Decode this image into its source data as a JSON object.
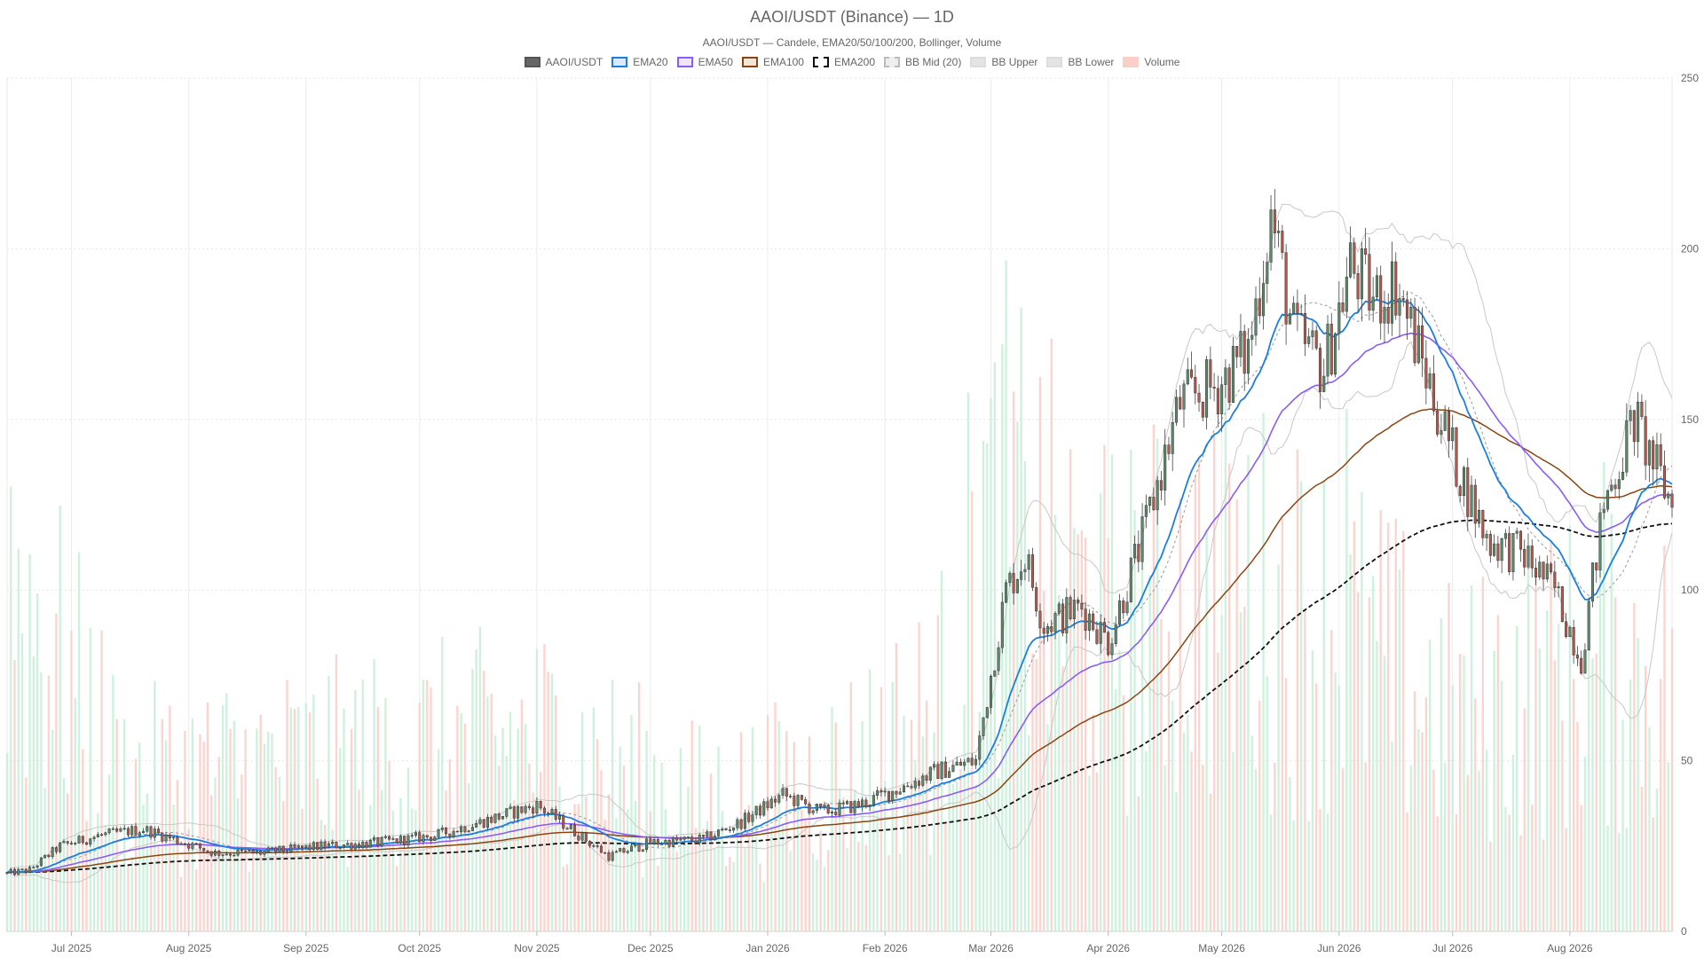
{
  "chart_data": {
    "type": "candlestick",
    "title": "AAOI/USDT (Binance) — 1D",
    "subtitle": "AAOI/USDT — Candele, EMA20/50/100/200, Bollinger, Volume",
    "legend": [
      {
        "label": "AAOI/USDT",
        "style": "solid",
        "fill": "#666666",
        "stroke": "#555555"
      },
      {
        "label": "EMA20",
        "style": "solid",
        "fill": "#dbeafd",
        "stroke": "#1a7fe0"
      },
      {
        "label": "EMA50",
        "style": "solid",
        "fill": "#ede6fd",
        "stroke": "#8b5cf6"
      },
      {
        "label": "EMA100",
        "style": "solid",
        "fill": "#f3e6d8",
        "stroke": "#8b4513"
      },
      {
        "label": "EMA200",
        "style": "dashed",
        "fill": "#ffffff",
        "stroke": "#111111"
      },
      {
        "label": "BB Mid (20)",
        "style": "dashed",
        "fill": "#eeeeee",
        "stroke": "#bbbbbb"
      },
      {
        "label": "BB Upper",
        "style": "solid",
        "fill": "#e4e4e4",
        "stroke": "#dddddd"
      },
      {
        "label": "BB Lower",
        "style": "solid",
        "fill": "#e4e4e4",
        "stroke": "#dddddd"
      },
      {
        "label": "Volume",
        "style": "solid",
        "fill": "#fbcfc9",
        "stroke": "#fbcfc9"
      }
    ],
    "legend_position": "top-center",
    "y_axis": {
      "side": "right",
      "min": 0,
      "max": 250,
      "ticks": [
        0,
        50,
        100,
        150,
        200,
        250
      ]
    },
    "x_axis": {
      "start": "2025-06-14",
      "end": "2026-08-28",
      "ticks": [
        {
          "label": "Jul 2025",
          "date": "2025-07-01"
        },
        {
          "label": "Aug 2025",
          "date": "2025-08-01"
        },
        {
          "label": "Sep 2025",
          "date": "2025-09-01"
        },
        {
          "label": "Oct 2025",
          "date": "2025-10-01"
        },
        {
          "label": "Nov 2025",
          "date": "2025-11-01"
        },
        {
          "label": "Dec 2025",
          "date": "2025-12-01"
        },
        {
          "label": "Jan 2026",
          "date": "2026-01-01"
        },
        {
          "label": "Feb 2026",
          "date": "2026-02-01"
        },
        {
          "label": "Mar 2026",
          "date": "2026-03-01"
        },
        {
          "label": "Apr 2026",
          "date": "2026-04-01"
        },
        {
          "label": "May 2026",
          "date": "2026-05-01"
        },
        {
          "label": "Jun 2026",
          "date": "2026-06-01"
        },
        {
          "label": "Jul 2026",
          "date": "2026-07-01"
        },
        {
          "label": "Aug 2026",
          "date": "2026-08-01"
        }
      ]
    },
    "grid": true,
    "colors": {
      "up": "#5b8a6b",
      "down": "#b5584a",
      "volume_up": "#c9efd9",
      "volume_down": "#fbcfc9"
    },
    "volume_axis_max": 40000000,
    "price_anchors": [
      [
        "2025-06-14",
        17
      ],
      [
        "2025-06-20",
        18
      ],
      [
        "2025-06-28",
        25
      ],
      [
        "2025-07-08",
        28
      ],
      [
        "2025-07-20",
        30
      ],
      [
        "2025-07-28",
        27
      ],
      [
        "2025-08-08",
        23
      ],
      [
        "2025-08-20",
        23
      ],
      [
        "2025-09-05",
        25
      ],
      [
        "2025-09-20",
        26
      ],
      [
        "2025-10-05",
        28
      ],
      [
        "2025-10-20",
        33
      ],
      [
        "2025-11-01",
        37
      ],
      [
        "2025-11-10",
        30
      ],
      [
        "2025-11-20",
        22
      ],
      [
        "2025-12-01",
        26
      ],
      [
        "2025-12-15",
        27
      ],
      [
        "2025-12-25",
        32
      ],
      [
        "2026-01-05",
        40
      ],
      [
        "2026-01-15",
        35
      ],
      [
        "2026-01-25",
        37
      ],
      [
        "2026-02-05",
        42
      ],
      [
        "2026-02-15",
        47
      ],
      [
        "2026-02-25",
        50
      ],
      [
        "2026-03-01",
        75
      ],
      [
        "2026-03-05",
        100
      ],
      [
        "2026-03-10",
        110
      ],
      [
        "2026-03-15",
        90
      ],
      [
        "2026-03-25",
        95
      ],
      [
        "2026-04-01",
        85
      ],
      [
        "2026-04-10",
        115
      ],
      [
        "2026-04-20",
        155
      ],
      [
        "2026-04-30",
        160
      ],
      [
        "2026-05-08",
        170
      ],
      [
        "2026-05-14",
        210
      ],
      [
        "2026-05-20",
        175
      ],
      [
        "2026-05-28",
        165
      ],
      [
        "2026-06-04",
        195
      ],
      [
        "2026-06-10",
        185
      ],
      [
        "2026-06-16",
        190
      ],
      [
        "2026-06-25",
        160
      ],
      [
        "2026-07-01",
        140
      ],
      [
        "2026-07-10",
        115
      ],
      [
        "2026-07-20",
        110
      ],
      [
        "2026-07-28",
        100
      ],
      [
        "2026-08-04",
        80
      ],
      [
        "2026-08-10",
        125
      ],
      [
        "2026-08-18",
        150
      ],
      [
        "2026-08-28",
        125
      ]
    ],
    "volume_anchors": [
      [
        "2025-06-14",
        17000000
      ],
      [
        "2025-07-15",
        7000000
      ],
      [
        "2025-09-15",
        8000000
      ],
      [
        "2025-11-01",
        9000000
      ],
      [
        "2025-12-15",
        6000000
      ],
      [
        "2026-01-15",
        7000000
      ],
      [
        "2026-02-15",
        10000000
      ],
      [
        "2026-03-01",
        20000000
      ],
      [
        "2026-04-01",
        14000000
      ],
      [
        "2026-05-01",
        16000000
      ],
      [
        "2026-06-01",
        14000000
      ],
      [
        "2026-07-01",
        10000000
      ],
      [
        "2026-08-01",
        12000000
      ],
      [
        "2026-08-28",
        12000000
      ]
    ],
    "volume_spikes": [
      [
        "2026-02-27",
        23000000
      ],
      [
        "2026-03-01",
        25000000
      ],
      [
        "2026-06-03",
        24500000
      ],
      [
        "2026-08-10",
        22000000
      ]
    ]
  }
}
